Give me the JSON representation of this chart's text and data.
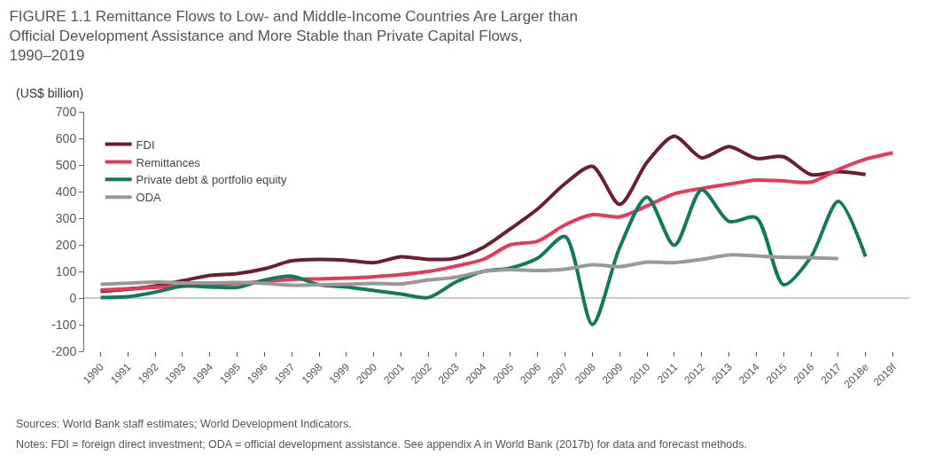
{
  "chart_data": {
    "type": "line",
    "title": "FIGURE 1.1 Remittance Flows to Low- and Middle-Income Countries Are Larger than Official Development Assistance and More Stable than Private Capital Flows, 1990–2019",
    "ylabel": "(US$ billion)",
    "categories": [
      "1990",
      "1991",
      "1992",
      "1993",
      "1994",
      "1995",
      "1996",
      "1997",
      "1998",
      "1999",
      "2000",
      "2001",
      "2002",
      "2003",
      "2004",
      "2005",
      "2006",
      "2007",
      "2008",
      "2009",
      "2010",
      "2011",
      "2012",
      "2013",
      "2014",
      "2015",
      "2016",
      "2017",
      "2018e",
      "2019f"
    ],
    "series": [
      {
        "name": "FDI",
        "color": "#6b1f2e",
        "values": [
          25,
          33,
          45,
          65,
          85,
          92,
          110,
          140,
          145,
          142,
          133,
          155,
          145,
          150,
          190,
          260,
          335,
          430,
          495,
          352,
          510,
          608,
          527,
          569,
          525,
          531,
          464,
          475,
          464,
          null
        ]
      },
      {
        "name": "Remittances",
        "color": "#e8395a",
        "values": [
          30,
          35,
          40,
          45,
          50,
          55,
          62,
          70,
          72,
          75,
          80,
          88,
          100,
          120,
          145,
          200,
          214,
          275,
          313,
          305,
          346,
          392,
          412,
          428,
          443,
          440,
          436,
          483,
          522,
          546
        ]
      },
      {
        "name": "Private debt & portfolio equity",
        "color": "#127a5c",
        "values": [
          2,
          5,
          22,
          45,
          42,
          40,
          68,
          82,
          50,
          42,
          28,
          15,
          2,
          60,
          100,
          113,
          150,
          231,
          -99,
          190,
          379,
          198,
          407,
          288,
          302,
          50,
          154,
          363,
          156,
          null
        ]
      },
      {
        "name": "ODA",
        "color": "#999999",
        "values": [
          52,
          56,
          60,
          57,
          57,
          58,
          55,
          48,
          50,
          52,
          55,
          53,
          68,
          78,
          100,
          107,
          103,
          108,
          125,
          118,
          135,
          133,
          145,
          162,
          158,
          153,
          152,
          148,
          null,
          null
        ]
      }
    ],
    "ylim": [
      -200,
      700
    ],
    "yticks": [
      -200,
      -100,
      0,
      100,
      200,
      300,
      400,
      500,
      600,
      700
    ],
    "grid": false,
    "ref_lines": [
      {
        "axis": "y",
        "value": 0,
        "color": "#999999"
      }
    ],
    "legend": "top left",
    "marker": "none",
    "line_style": "solid",
    "annotations": [
      "Sources: World Bank staff estimates; World Development Indicators.",
      "Notes: FDI = foreign direct investment; ODA = official development assistance. See appendix A in World Bank (2017b) for data and forecast methods."
    ]
  }
}
